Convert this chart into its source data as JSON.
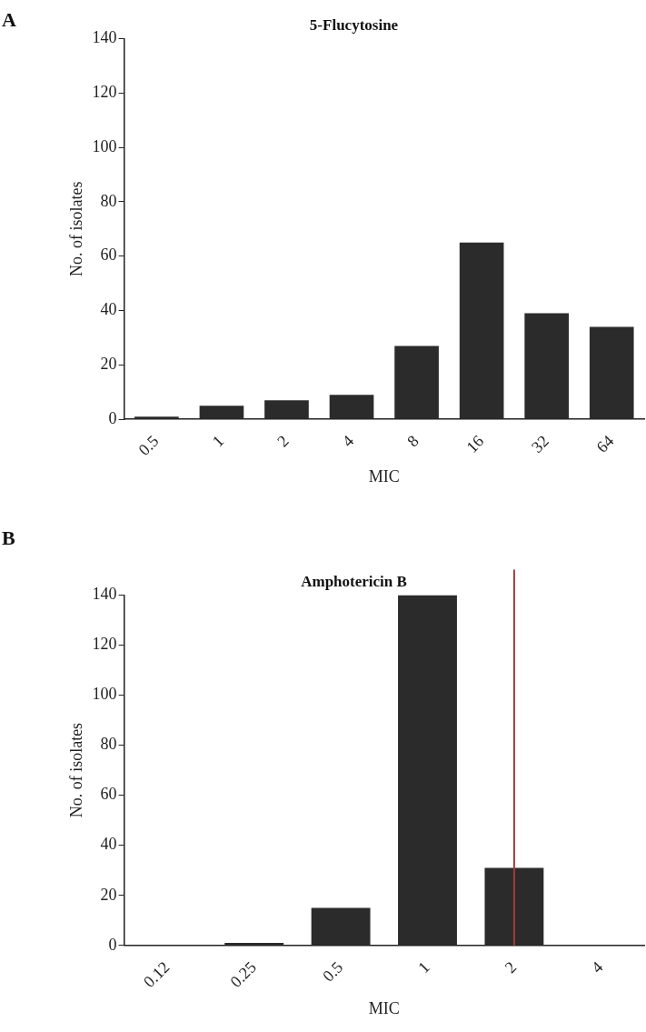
{
  "chart_data": [
    {
      "type": "bar",
      "title": "5-Flucytosine",
      "xlabel": "MIC",
      "ylabel": "No. of isolates",
      "annotations": [
        "A"
      ],
      "categories": [
        "0.5",
        "1",
        "2",
        "4",
        "8",
        "16",
        "32",
        "64"
      ],
      "values": [
        1,
        5,
        7,
        9,
        27,
        65,
        39,
        34
      ],
      "color": "#2b2b2b",
      "ylim": [
        0,
        140
      ],
      "yticks": [
        0,
        20,
        40,
        60,
        80,
        100,
        120,
        140
      ],
      "grid": false
    },
    {
      "type": "bar",
      "title": "Amphotericin B",
      "xlabel": "MIC",
      "ylabel": "No. of isolates",
      "annotations": [
        "B"
      ],
      "categories": [
        "0.12",
        "0.25",
        "0.5",
        "1",
        "2",
        "4"
      ],
      "values": [
        0,
        1,
        15,
        140,
        31,
        0
      ],
      "color": "#2b2b2b",
      "ylim": [
        0,
        140
      ],
      "yticks": [
        0,
        20,
        40,
        60,
        80,
        100,
        120,
        140
      ],
      "grid": false,
      "ref_lines": [
        {
          "axis": "x",
          "value": "2",
          "color": "#a33a3a"
        }
      ]
    }
  ]
}
